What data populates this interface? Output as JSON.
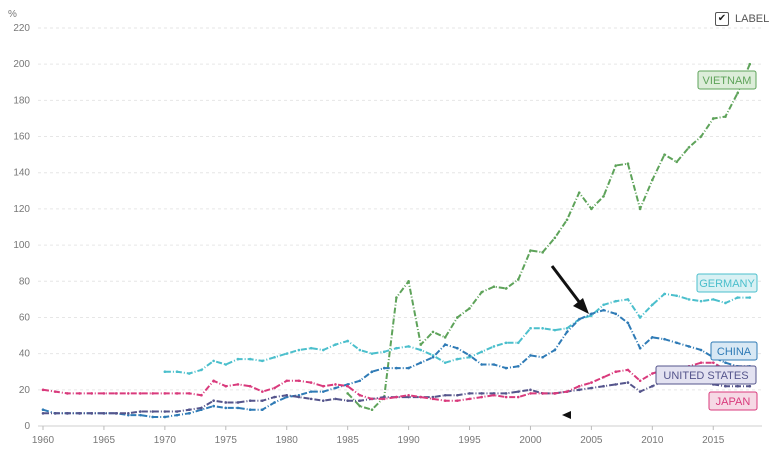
{
  "toggle": {
    "label": "LABEL",
    "checked": true,
    "check_glyph": "✔"
  },
  "chart_data": {
    "type": "line",
    "title": "",
    "xlabel": "",
    "ylabel": "",
    "unit": "%",
    "xlim": [
      1960,
      2019
    ],
    "ylim": [
      0,
      220
    ],
    "x_ticks": [
      1960,
      1965,
      1970,
      1975,
      1980,
      1985,
      1990,
      1995,
      2000,
      2005,
      2010,
      2015
    ],
    "y_ticks": [
      0,
      20,
      40,
      60,
      80,
      100,
      120,
      140,
      160,
      180,
      200,
      220
    ],
    "grid": "horizontal dashed",
    "series": [
      {
        "name": "VIETNAM",
        "color": "#5ea35a",
        "label_fill": "#dcedd9",
        "x": [
          1985,
          1986,
          1987,
          1988,
          1989,
          1990,
          1991,
          1992,
          1993,
          1994,
          1995,
          1996,
          1997,
          1998,
          1999,
          2000,
          2001,
          2002,
          2003,
          2004,
          2005,
          2006,
          2007,
          2008,
          2009,
          2010,
          2011,
          2012,
          2013,
          2014,
          2015,
          2016,
          2017,
          2018
        ],
        "values": [
          18,
          11,
          9,
          16,
          71,
          80,
          45,
          52,
          49,
          60,
          65,
          74,
          77,
          76,
          81,
          97,
          96,
          104,
          114,
          129,
          120,
          127,
          144,
          145,
          120,
          136,
          150,
          146,
          154,
          160,
          170,
          171,
          184,
          200
        ]
      },
      {
        "name": "GERMANY",
        "color": "#4bbfcc",
        "label_fill": "#d9f1f4",
        "x": [
          1970,
          1971,
          1972,
          1973,
          1974,
          1975,
          1976,
          1977,
          1978,
          1979,
          1980,
          1981,
          1982,
          1983,
          1984,
          1985,
          1986,
          1987,
          1988,
          1989,
          1990,
          1991,
          1992,
          1993,
          1994,
          1995,
          1996,
          1997,
          1998,
          1999,
          2000,
          2001,
          2002,
          2003,
          2004,
          2005,
          2006,
          2007,
          2008,
          2009,
          2010,
          2011,
          2012,
          2013,
          2014,
          2015,
          2016,
          2017,
          2018
        ],
        "values": [
          30,
          30,
          29,
          31,
          36,
          34,
          37,
          37,
          36,
          38,
          40,
          42,
          43,
          42,
          45,
          47,
          42,
          40,
          41,
          43,
          44,
          42,
          39,
          35,
          37,
          38,
          41,
          44,
          46,
          46,
          54,
          54,
          53,
          54,
          59,
          61,
          67,
          69,
          70,
          60,
          67,
          73,
          72,
          70,
          69,
          70,
          68,
          71,
          71
        ]
      },
      {
        "name": "CHINA",
        "color": "#2f7bb6",
        "label_fill": "#d8e8f4",
        "x": [
          1960,
          1961,
          1962,
          1963,
          1964,
          1965,
          1966,
          1967,
          1968,
          1969,
          1970,
          1971,
          1972,
          1973,
          1974,
          1975,
          1976,
          1977,
          1978,
          1979,
          1980,
          1981,
          1982,
          1983,
          1984,
          1985,
          1986,
          1987,
          1988,
          1989,
          1990,
          1991,
          1992,
          1993,
          1994,
          1995,
          1996,
          1997,
          1998,
          1999,
          2000,
          2001,
          2002,
          2003,
          2004,
          2005,
          2006,
          2007,
          2008,
          2009,
          2010,
          2011,
          2012,
          2013,
          2014,
          2015,
          2016,
          2017,
          2018
        ],
        "values": [
          9,
          7,
          7,
          7,
          7,
          7,
          7,
          6,
          6,
          5,
          5,
          6,
          7,
          9,
          11,
          10,
          10,
          9,
          9,
          13,
          16,
          17,
          19,
          19,
          21,
          23,
          25,
          30,
          32,
          32,
          32,
          35,
          38,
          45,
          43,
          39,
          34,
          34,
          32,
          33,
          39,
          38,
          42,
          52,
          59,
          62,
          64,
          62,
          57,
          43,
          49,
          48,
          46,
          44,
          42,
          38,
          35,
          33,
          33
        ]
      },
      {
        "name": "UNITED STATES",
        "color": "#55558c",
        "label_fill": "#e3e2f1",
        "x": [
          1960,
          1961,
          1962,
          1963,
          1964,
          1965,
          1966,
          1967,
          1968,
          1969,
          1970,
          1971,
          1972,
          1973,
          1974,
          1975,
          1976,
          1977,
          1978,
          1979,
          1980,
          1981,
          1982,
          1983,
          1984,
          1985,
          1986,
          1987,
          1988,
          1989,
          1990,
          1991,
          1992,
          1993,
          1994,
          1995,
          1996,
          1997,
          1998,
          1999,
          2000,
          2001,
          2002,
          2003,
          2004,
          2005,
          2006,
          2007,
          2008,
          2009,
          2010,
          2011,
          2012,
          2013,
          2014,
          2015,
          2016,
          2017,
          2018
        ],
        "values": [
          7,
          7,
          7,
          7,
          7,
          7,
          7,
          7,
          8,
          8,
          8,
          8,
          9,
          10,
          14,
          13,
          13,
          14,
          14,
          16,
          17,
          16,
          15,
          14,
          15,
          14,
          14,
          15,
          16,
          16,
          16,
          16,
          16,
          17,
          17,
          18,
          18,
          18,
          18,
          19,
          20,
          18,
          18,
          19,
          20,
          21,
          22,
          23,
          24,
          19,
          22,
          25,
          25,
          25,
          25,
          23,
          22,
          22,
          22
        ]
      },
      {
        "name": "JAPAN",
        "color": "#d93a7c",
        "label_fill": "#f6d9e5",
        "x": [
          1960,
          1961,
          1962,
          1963,
          1964,
          1965,
          1966,
          1967,
          1968,
          1969,
          1970,
          1971,
          1972,
          1973,
          1974,
          1975,
          1976,
          1977,
          1978,
          1979,
          1980,
          1981,
          1982,
          1983,
          1984,
          1985,
          1986,
          1987,
          1988,
          1989,
          1990,
          1991,
          1992,
          1993,
          1994,
          1995,
          1996,
          1997,
          1998,
          1999,
          2000,
          2001,
          2002,
          2003,
          2004,
          2005,
          2006,
          2007,
          2008,
          2009,
          2010,
          2011,
          2012,
          2013,
          2014,
          2015,
          2016,
          2017,
          2018
        ],
        "values": [
          20,
          19,
          18,
          18,
          18,
          18,
          18,
          18,
          18,
          18,
          18,
          18,
          18,
          17,
          25,
          22,
          23,
          22,
          19,
          21,
          25,
          25,
          24,
          22,
          23,
          22,
          17,
          15,
          15,
          16,
          17,
          16,
          15,
          14,
          14,
          15,
          16,
          17,
          16,
          16,
          18,
          18,
          18,
          19,
          22,
          24,
          27,
          30,
          31,
          25,
          29,
          31,
          31,
          33,
          35,
          35,
          31,
          31,
          31
        ]
      }
    ]
  }
}
